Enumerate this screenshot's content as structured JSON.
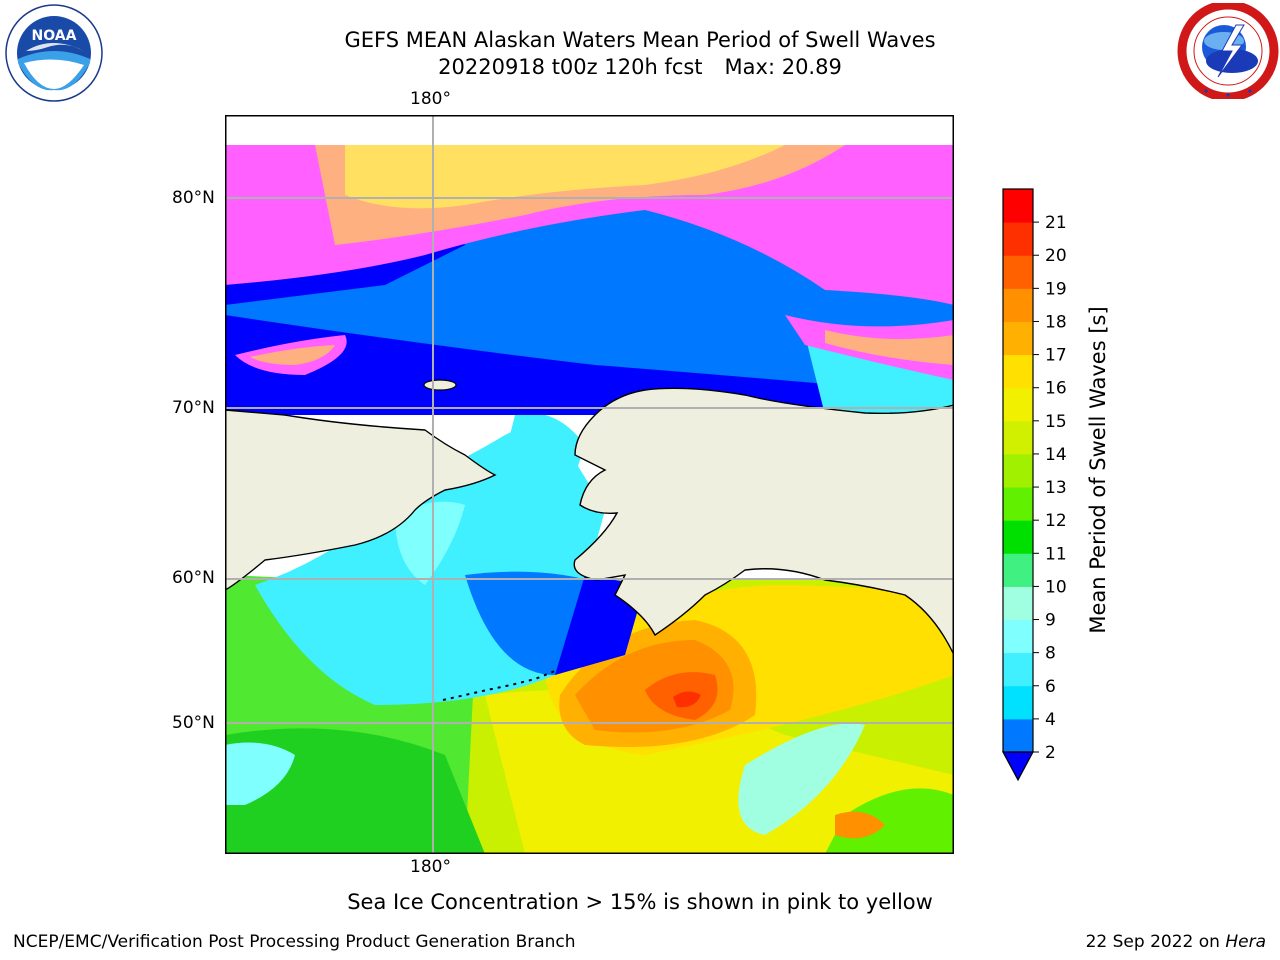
{
  "header": {
    "title_line1": "GEFS MEAN Alaskan Waters Mean Period of Swell Waves",
    "title_date": "20220918 t00z 120h fcst",
    "title_max": "Max: 20.89"
  },
  "logos": {
    "left": {
      "icon": "noaa-logo-icon",
      "text": "NOAA"
    },
    "right": {
      "icon": "nws-logo-icon"
    }
  },
  "map": {
    "longitude_labels": [
      "180°",
      "180°"
    ],
    "latitude_labels": [
      "80°N",
      "70°N",
      "60°N",
      "50°N"
    ],
    "land_color": "#efefe0",
    "gridline_color": "#b0b0b0"
  },
  "colorbar": {
    "title": "Mean Period of Swell Waves [s]",
    "ticks": [
      "2",
      "4",
      "6",
      "8",
      "9",
      "10",
      "11",
      "12",
      "13",
      "14",
      "15",
      "16",
      "17",
      "18",
      "19",
      "20",
      "21"
    ],
    "colors": [
      "#0078ff",
      "#00e0ff",
      "#40f0ff",
      "#80ffff",
      "#a0ffe0",
      "#40f080",
      "#00e000",
      "#60f000",
      "#a0f000",
      "#d0f000",
      "#f0f000",
      "#ffe000",
      "#ffb000",
      "#ff9000",
      "#ff6000",
      "#ff3000",
      "#ff0000"
    ],
    "under_color": "#0000ff"
  },
  "notes": {
    "ice": "Sea Ice Concentration > 15% is shown in pink to yellow"
  },
  "footer": {
    "left": "NCEP/EMC/Verification Post Processing Product Generation Branch",
    "date": "22 Sep 2022 on",
    "host": "Hera"
  }
}
